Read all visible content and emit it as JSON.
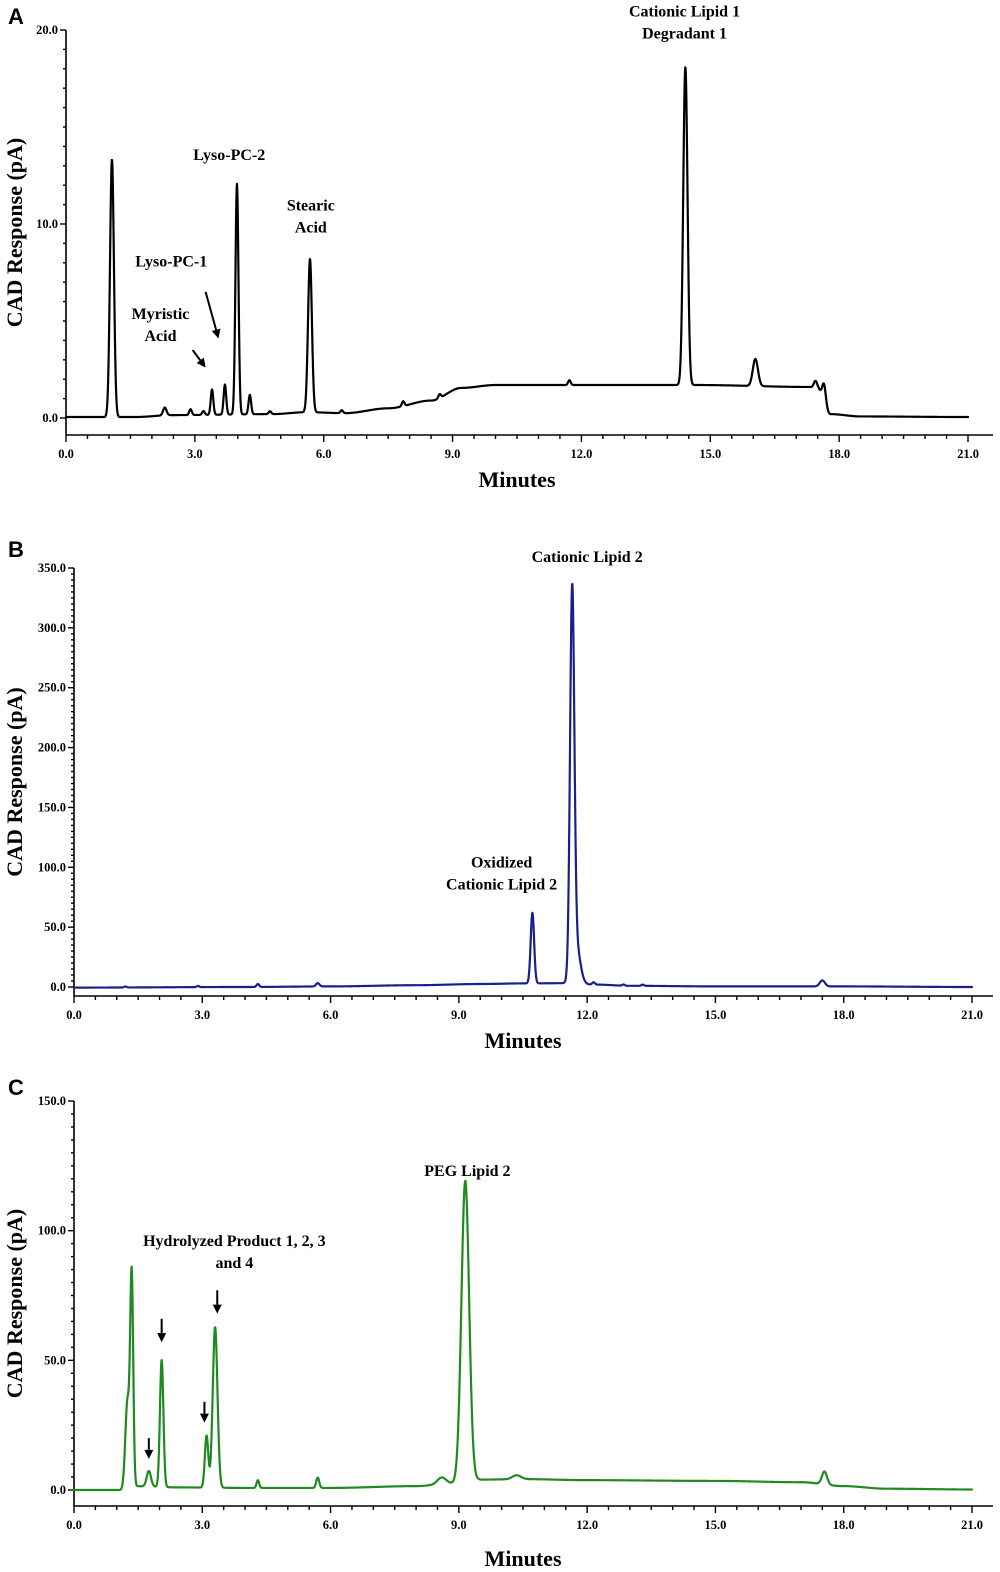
{
  "chart_data": [
    {
      "panel": "A",
      "type": "line",
      "xlabel": "Minutes",
      "ylabel": "CAD Response (pA)",
      "xlim": [
        0,
        21
      ],
      "ylim": [
        0,
        20
      ],
      "xticks": [
        "0.0",
        "3.0",
        "6.0",
        "9.0",
        "12.0",
        "15.0",
        "18.0",
        "21.0"
      ],
      "yticks": [
        "0.0",
        "10.0",
        "20.0"
      ],
      "color": "#000000",
      "baseline": [
        [
          0,
          0.05
        ],
        [
          1.6,
          0.05
        ],
        [
          2.5,
          0.15
        ],
        [
          4.8,
          0.2
        ],
        [
          5.6,
          0.3
        ],
        [
          6.5,
          0.25
        ],
        [
          7.5,
          0.5
        ],
        [
          8.5,
          0.9
        ],
        [
          9.2,
          1.55
        ],
        [
          10,
          1.7
        ],
        [
          11,
          1.7
        ],
        [
          14.2,
          1.7
        ],
        [
          14.7,
          1.7
        ],
        [
          17.3,
          1.6
        ],
        [
          17.5,
          1.5
        ],
        [
          17.8,
          0.2
        ],
        [
          18.5,
          0.08
        ],
        [
          21,
          0.05
        ]
      ],
      "peaks": [
        {
          "x": 1.07,
          "y": 13.3,
          "w": 0.045
        },
        {
          "x": 2.3,
          "y": 0.4,
          "w": 0.04
        },
        {
          "x": 2.9,
          "y": 0.3,
          "w": 0.03
        },
        {
          "x": 3.2,
          "y": 0.2,
          "w": 0.03
        },
        {
          "x": 3.4,
          "y": 1.3,
          "w": 0.03
        },
        {
          "x": 3.7,
          "y": 1.55,
          "w": 0.03
        },
        {
          "x": 3.98,
          "y": 11.9,
          "w": 0.035
        },
        {
          "x": 4.28,
          "y": 1.0,
          "w": 0.03
        },
        {
          "x": 4.75,
          "y": 0.15,
          "w": 0.03
        },
        {
          "x": 5.68,
          "y": 7.9,
          "w": 0.045
        },
        {
          "x": 6.42,
          "y": 0.15,
          "w": 0.03
        },
        {
          "x": 7.85,
          "y": 0.25,
          "w": 0.03
        },
        {
          "x": 8.7,
          "y": 0.2,
          "w": 0.03
        },
        {
          "x": 11.72,
          "y": 0.25,
          "w": 0.03
        },
        {
          "x": 14.42,
          "y": 16.4,
          "w": 0.05
        },
        {
          "x": 16.05,
          "y": 1.4,
          "w": 0.06
        },
        {
          "x": 17.45,
          "y": 0.4,
          "w": 0.04
        },
        {
          "x": 17.65,
          "y": 0.9,
          "w": 0.04
        }
      ],
      "annotations": [
        {
          "lines": [
            "Cationic Lipid 1",
            "Degradant 1"
          ],
          "x": 14.4,
          "y": 20.7
        },
        {
          "lines": [
            "Lyso-PC-2"
          ],
          "x": 3.8,
          "y": 13.3
        },
        {
          "lines": [
            "Stearic",
            "Acid"
          ],
          "x": 5.7,
          "y": 10.7
        },
        {
          "lines": [
            "Lyso-PC-1"
          ],
          "x": 2.45,
          "y": 7.8
        },
        {
          "lines": [
            "Myristic",
            "Acid"
          ],
          "x": 2.2,
          "y": 5.1
        }
      ],
      "arrows": [
        {
          "from": [
            3.25,
            6.5
          ],
          "to": [
            3.55,
            4.1
          ]
        },
        {
          "from": [
            2.95,
            3.5
          ],
          "to": [
            3.25,
            2.6
          ]
        }
      ]
    },
    {
      "panel": "B",
      "type": "line",
      "xlabel": "Minutes",
      "ylabel": "CAD Response (pA)",
      "xlim": [
        0,
        21
      ],
      "ylim": [
        0,
        350
      ],
      "xticks": [
        "0.0",
        "3.0",
        "6.0",
        "9.0",
        "12.0",
        "15.0",
        "18.0",
        "21.0"
      ],
      "yticks": [
        "0.0",
        "50.0",
        "100.0",
        "150.0",
        "200.0",
        "250.0",
        "300.0",
        "350.0"
      ],
      "color": "#1a1f8c",
      "baseline": [
        [
          0,
          -0.5
        ],
        [
          4,
          0
        ],
        [
          6,
          0.5
        ],
        [
          8,
          1.5
        ],
        [
          9.5,
          2.5
        ],
        [
          10.5,
          3
        ],
        [
          11.5,
          3.2
        ],
        [
          12.2,
          2
        ],
        [
          13,
          1
        ],
        [
          15,
          0.5
        ],
        [
          17,
          0.5
        ],
        [
          18,
          0.5
        ],
        [
          21,
          0
        ]
      ],
      "peaks": [
        {
          "x": 1.2,
          "y": 0.8,
          "w": 0.03
        },
        {
          "x": 2.9,
          "y": 1,
          "w": 0.03
        },
        {
          "x": 4.3,
          "y": 2.5,
          "w": 0.03
        },
        {
          "x": 5.7,
          "y": 2.8,
          "w": 0.04
        },
        {
          "x": 10.72,
          "y": 59,
          "w": 0.04
        },
        {
          "x": 11.65,
          "y": 318,
          "w": 0.05
        },
        {
          "x": 11.75,
          "y": 30,
          "w": 0.09
        },
        {
          "x": 12.15,
          "y": 2,
          "w": 0.03
        },
        {
          "x": 12.85,
          "y": 1,
          "w": 0.03
        },
        {
          "x": 13.3,
          "y": 1,
          "w": 0.03
        },
        {
          "x": 17.5,
          "y": 5,
          "w": 0.06
        }
      ],
      "annotations": [
        {
          "lines": [
            "Cationic Lipid 2"
          ],
          "x": 12.0,
          "y": 355
        },
        {
          "lines": [
            "Oxidized",
            "Cationic Lipid 2"
          ],
          "x": 10.0,
          "y": 100
        }
      ],
      "arrows": []
    },
    {
      "panel": "C",
      "type": "line",
      "xlabel": "Minutes",
      "ylabel": "CAD Response (pA)",
      "xlim": [
        0,
        21
      ],
      "ylim": [
        0,
        150
      ],
      "xticks": [
        "0.0",
        "3.0",
        "6.0",
        "9.0",
        "12.0",
        "15.0",
        "18.0",
        "21.0"
      ],
      "yticks": [
        "0.0",
        "50.0",
        "100.0",
        "150.0"
      ],
      "color": "#1f8a1f",
      "baseline": [
        [
          0,
          0
        ],
        [
          1.1,
          0
        ],
        [
          1.3,
          1.5
        ],
        [
          2.5,
          1
        ],
        [
          4,
          0.8
        ],
        [
          6,
          0.8
        ],
        [
          8,
          1.5
        ],
        [
          8.8,
          2.5
        ],
        [
          9.5,
          4
        ],
        [
          10.5,
          4.2
        ],
        [
          12,
          3.8
        ],
        [
          15,
          3.5
        ],
        [
          17,
          3
        ],
        [
          18,
          1.5
        ],
        [
          19,
          0.5
        ],
        [
          21,
          0.2
        ]
      ],
      "peaks": [
        {
          "x": 1.25,
          "y": 33,
          "w": 0.05
        },
        {
          "x": 1.35,
          "y": 80,
          "w": 0.035
        },
        {
          "x": 1.75,
          "y": 6,
          "w": 0.05
        },
        {
          "x": 2.05,
          "y": 49,
          "w": 0.04
        },
        {
          "x": 3.1,
          "y": 20,
          "w": 0.04
        },
        {
          "x": 3.3,
          "y": 62,
          "w": 0.055
        },
        {
          "x": 4.3,
          "y": 3,
          "w": 0.03
        },
        {
          "x": 5.7,
          "y": 4,
          "w": 0.035
        },
        {
          "x": 8.6,
          "y": 2.5,
          "w": 0.1
        },
        {
          "x": 9.15,
          "y": 116,
          "w": 0.09
        },
        {
          "x": 10.35,
          "y": 1.5,
          "w": 0.1
        },
        {
          "x": 17.55,
          "y": 5,
          "w": 0.06
        }
      ],
      "annotations": [
        {
          "lines": [
            "PEG Lipid 2"
          ],
          "x": 9.2,
          "y": 121
        },
        {
          "lines": [
            "Hydrolyzed Product 1, 2, 3",
            "and 4"
          ],
          "x": 3.75,
          "y": 94
        }
      ],
      "arrows": [
        {
          "from": [
            1.75,
            20
          ],
          "to": [
            1.75,
            12
          ]
        },
        {
          "from": [
            2.05,
            66
          ],
          "to": [
            2.05,
            57
          ]
        },
        {
          "from": [
            3.05,
            34
          ],
          "to": [
            3.05,
            26
          ]
        },
        {
          "from": [
            3.35,
            77
          ],
          "to": [
            3.35,
            68
          ]
        }
      ]
    }
  ]
}
